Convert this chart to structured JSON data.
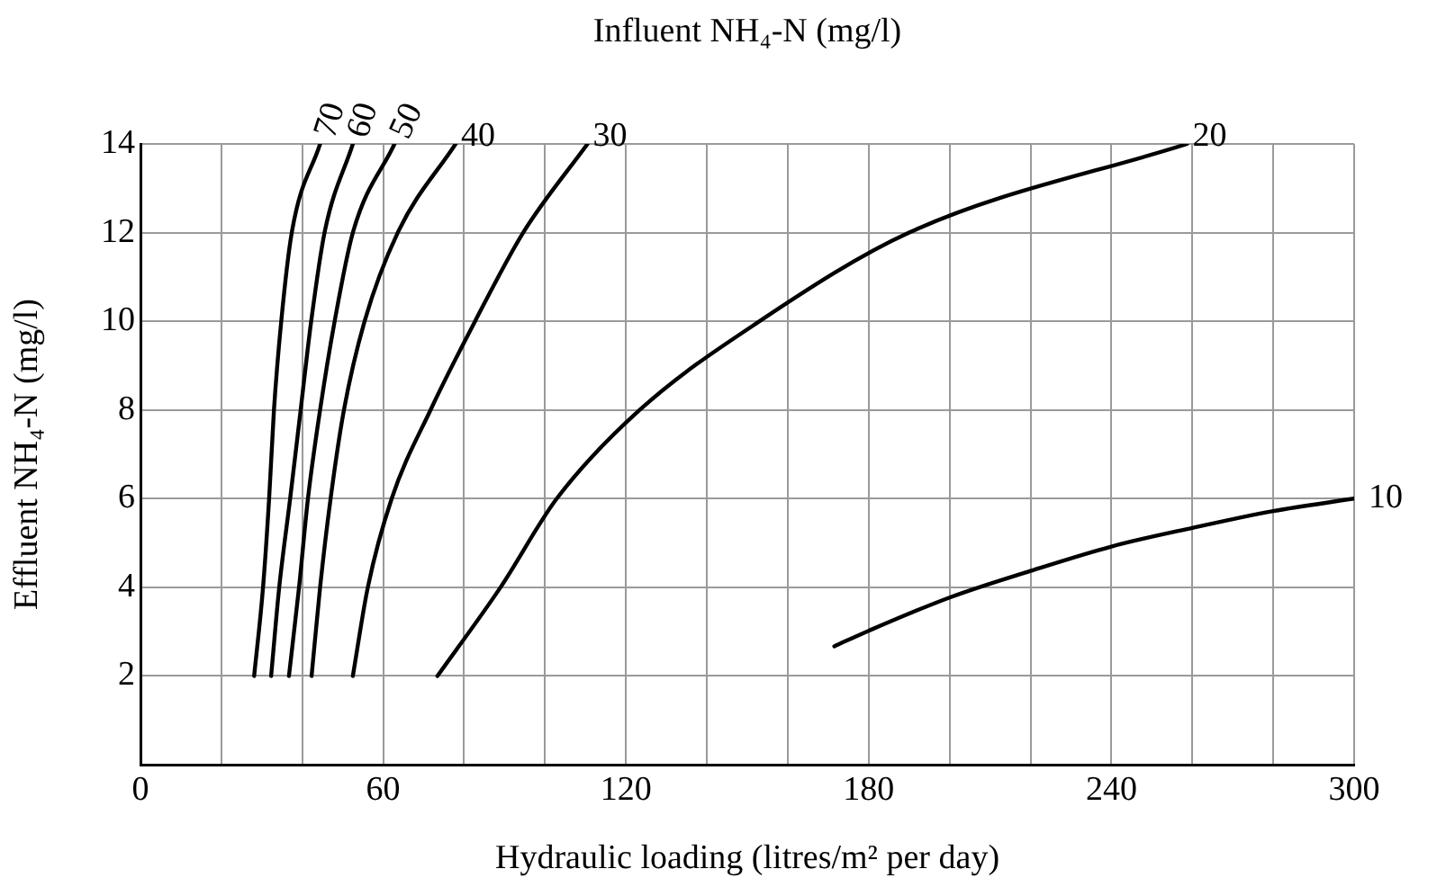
{
  "chart_data": {
    "type": "line",
    "xlabel": "Hydraulic loading (litres/m² per day)",
    "ylabel": "Effluent NH₄-N (mg/l)",
    "annotations": [
      "Influent NH₄-N (mg/l)"
    ],
    "xlim": [
      0,
      300
    ],
    "ylim": [
      0,
      14
    ],
    "xticks": [
      0,
      {
        "value": 20,
        "label": null
      },
      {
        "value": 40,
        "label": null
      },
      60,
      {
        "value": 80,
        "label": null
      },
      {
        "value": 100,
        "label": null
      },
      120,
      {
        "value": 140,
        "label": null
      },
      {
        "value": 160,
        "label": null
      },
      180,
      {
        "value": 200,
        "label": null
      },
      {
        "value": 220,
        "label": null
      },
      240,
      {
        "value": 260,
        "label": null
      },
      {
        "value": 280,
        "label": null
      },
      300
    ],
    "yticks": [
      {
        "value": 0,
        "label": null
      },
      2,
      4,
      6,
      8,
      10,
      12,
      14
    ],
    "grid": true,
    "legend": false,
    "marker": "none",
    "line_style": "solid",
    "series": [
      {
        "name": "70",
        "color": "#000000",
        "x": [
          28.1,
          30.3,
          31.8,
          33,
          34.8,
          37.4,
          44.4
        ],
        "values": [
          2,
          4,
          6,
          8,
          10,
          12,
          14
        ]
      },
      {
        "name": "60",
        "color": "#000000",
        "x": [
          32.3,
          34.3,
          37,
          39.6,
          42.2,
          45.5,
          52.5
        ],
        "values": [
          2,
          4,
          6,
          8,
          10,
          12,
          14
        ]
      },
      {
        "name": "50",
        "color": "#000000",
        "x": [
          36.7,
          39.2,
          41.4,
          44.4,
          48,
          52.5,
          62.8
        ],
        "values": [
          2,
          4,
          6,
          8,
          10,
          12,
          14
        ]
      },
      {
        "name": "40",
        "color": "#000000",
        "x": [
          42.3,
          44.4,
          47,
          50.3,
          55.4,
          63.6,
          77.9
        ],
        "values": [
          2,
          4,
          6,
          8,
          10,
          12,
          14
        ]
      },
      {
        "name": "30",
        "color": "#000000",
        "x": [
          52.5,
          56.2,
          62.1,
          71.7,
          82.7,
          94.6,
          110.5
        ],
        "values": [
          2,
          4,
          6,
          8,
          10,
          12,
          14
        ]
      },
      {
        "name": "20",
        "color": "#000000",
        "x": [
          73.4,
          89,
          102.9,
          123.4,
          153,
          190,
          258.7
        ],
        "values": [
          2,
          4,
          6,
          8,
          10,
          12,
          14
        ]
      },
      {
        "name": "10",
        "color": "#000000",
        "x": [
          171.5,
          180,
          200,
          220,
          240,
          260,
          280,
          300
        ],
        "values": [
          2.67,
          3.02,
          3.77,
          4.37,
          4.92,
          5.34,
          5.72,
          6
        ]
      }
    ]
  }
}
